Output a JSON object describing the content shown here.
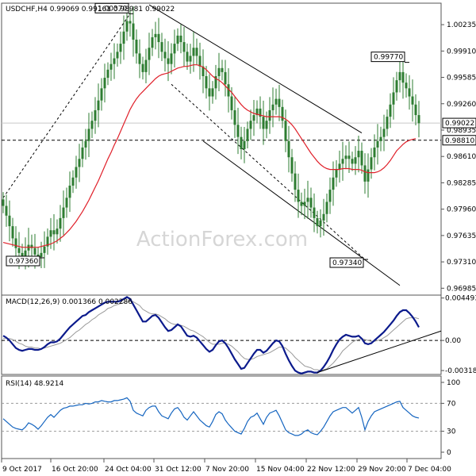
{
  "chart_data": [
    {
      "type": "candlestick",
      "title": "USDCHF,H4",
      "ohlc_header": {
        "open": "0.99069",
        "high": "0.99161",
        "low": "0.98981",
        "close": "0.99022"
      },
      "watermark": "ActionForex.com",
      "ylim": [
        0.969,
        1.005
      ],
      "y_ticks": [
        "1.00235",
        "0.99910",
        "0.99585",
        "0.99260",
        "0.98935",
        "0.98610",
        "0.98285",
        "0.97960",
        "0.97635",
        "0.97310",
        "0.96985"
      ],
      "x_ticks": [
        "9 Oct 2017",
        "16 Oct 20:00",
        "24 Oct 04:00",
        "31 Oct 12:00",
        "7 Nov 20:00",
        "15 Nov 04:00",
        "22 Nov 12:00",
        "29 Nov 20:00",
        "7 Dec 04:00"
      ],
      "current_price": "0.99022",
      "horizontal_line": {
        "label": "0.98810",
        "value": 0.9881
      },
      "annotations": [
        {
          "label": "1.00370",
          "value": 1.0037,
          "bar": 40
        },
        {
          "label": "0.99770",
          "value": 0.9977,
          "bar": 127
        },
        {
          "label": "0.97360",
          "value": 0.9736,
          "bar": 12
        },
        {
          "label": "0.97340",
          "value": 0.9734,
          "bar": 114
        }
      ],
      "closes": [
        0.98,
        0.9788,
        0.9775,
        0.976,
        0.9748,
        0.9742,
        0.9738,
        0.9745,
        0.9752,
        0.9748,
        0.974,
        0.9737,
        0.9742,
        0.975,
        0.9762,
        0.977,
        0.9765,
        0.9772,
        0.9785,
        0.9798,
        0.981,
        0.9825,
        0.9835,
        0.9848,
        0.9858,
        0.9872,
        0.988,
        0.9895,
        0.9905,
        0.9918,
        0.993,
        0.9945,
        0.9958,
        0.9968,
        0.9975,
        0.9982,
        0.999,
        1.0,
        1.0015,
        1.0028,
        1.0025,
        1.0005,
        0.9988,
        0.9975,
        0.9965,
        0.998,
        0.9995,
        1.0008,
        1.0012,
        1.0002,
        0.999,
        0.9982,
        0.9975,
        0.9988,
        1.0,
        1.001,
        1.0002,
        0.999,
        0.9978,
        0.9985,
        0.9995,
        0.9985,
        0.9972,
        0.996,
        0.9945,
        0.9935,
        0.9945,
        0.996,
        0.997,
        0.9965,
        0.995,
        0.9935,
        0.9918,
        0.99,
        0.9885,
        0.987,
        0.988,
        0.9895,
        0.9905,
        0.9912,
        0.992,
        0.991,
        0.9895,
        0.9905,
        0.9918,
        0.9925,
        0.9932,
        0.9922,
        0.9905,
        0.988,
        0.986,
        0.984,
        0.982,
        0.9805,
        0.98,
        0.9805,
        0.981,
        0.9798,
        0.9785,
        0.9775,
        0.9782,
        0.979,
        0.9805,
        0.982,
        0.9835,
        0.9845,
        0.9852,
        0.9858,
        0.9862,
        0.9858,
        0.9852,
        0.986,
        0.9868,
        0.985,
        0.983,
        0.9845,
        0.986,
        0.9872,
        0.988,
        0.9885,
        0.9895,
        0.991,
        0.9925,
        0.994,
        0.9955,
        0.9965,
        0.9952,
        0.9945,
        0.9935,
        0.9925,
        0.9912,
        0.9902
      ],
      "moving_average": [
        0.9755,
        0.9754,
        0.9753,
        0.9752,
        0.9751,
        0.975,
        0.9749,
        0.9749,
        0.9749,
        0.9749,
        0.9749,
        0.9749,
        0.975,
        0.9751,
        0.9752,
        0.9753,
        0.9755,
        0.9757,
        0.976,
        0.9763,
        0.9767,
        0.9771,
        0.9776,
        0.9781,
        0.9787,
        0.9793,
        0.98,
        0.9807,
        0.9815,
        0.9823,
        0.9831,
        0.984,
        0.9849,
        0.9858,
        0.9866,
        0.9875,
        0.9883,
        0.9892,
        0.9901,
        0.991,
        0.9919,
        0.9926,
        0.9932,
        0.9937,
        0.9941,
        0.9945,
        0.9949,
        0.9953,
        0.9957,
        0.996,
        0.9962,
        0.9963,
        0.9964,
        0.9966,
        0.9968,
        0.997,
        0.9971,
        0.9972,
        0.9972,
        0.9973,
        0.9974,
        0.9974,
        0.9973,
        0.9971,
        0.9968,
        0.9964,
        0.996,
        0.9957,
        0.9955,
        0.9952,
        0.9948,
        0.9944,
        0.994,
        0.9935,
        0.993,
        0.9925,
        0.9921,
        0.9918,
        0.9916,
        0.9914,
        0.9913,
        0.9912,
        0.9911,
        0.991,
        0.991,
        0.991,
        0.991,
        0.991,
        0.9909,
        0.9907,
        0.9904,
        0.99,
        0.9895,
        0.9889,
        0.9883,
        0.9877,
        0.9871,
        0.9865,
        0.986,
        0.9855,
        0.9851,
        0.9848,
        0.9846,
        0.9845,
        0.9845,
        0.9845,
        0.9845,
        0.9846,
        0.9846,
        0.9846,
        0.9845,
        0.9845,
        0.9845,
        0.9844,
        0.9842,
        0.9841,
        0.9841,
        0.9841,
        0.9842,
        0.9844,
        0.9847,
        0.9851,
        0.9856,
        0.9862,
        0.9868,
        0.9872,
        0.9876,
        0.9879,
        0.9881,
        0.9882,
        0.9883
      ],
      "trendlines": [
        {
          "name": "channel-upper",
          "from": [
            46,
            1.0048
          ],
          "to": [
            113,
            0.989
          ]
        },
        {
          "name": "channel-lower",
          "from": [
            63,
            0.988
          ],
          "to": [
            125,
            0.9702
          ]
        },
        {
          "name": "dashed-rise",
          "from": [
            0,
            0.981
          ],
          "to": [
            40,
            1.0037
          ],
          "dashed": true
        },
        {
          "name": "dashed-fall",
          "from": [
            53,
            0.995
          ],
          "to": [
            114,
            0.9734
          ],
          "dashed": true
        }
      ]
    },
    {
      "type": "line",
      "title": "MACD(12,26,9) 0.001366 0.002286",
      "ylim": [
        -0.0036,
        0.0048
      ],
      "y_ticks": [
        "0.004493",
        "0.00",
        "-0.003186"
      ],
      "macd": [
        0.0005,
        0.0003,
        0.0,
        -0.0004,
        -0.0008,
        -0.001,
        -0.0011,
        -0.001,
        -0.0009,
        -0.0009,
        -0.001,
        -0.001,
        -0.0009,
        -0.0007,
        -0.0004,
        -0.0002,
        -0.0002,
        -0.0001,
        0.0002,
        0.0006,
        0.001,
        0.0014,
        0.0017,
        0.002,
        0.0023,
        0.0026,
        0.0027,
        0.003,
        0.0032,
        0.0034,
        0.0036,
        0.0038,
        0.004,
        0.0041,
        0.0041,
        0.0041,
        0.0041,
        0.0042,
        0.0044,
        0.0046,
        0.0044,
        0.0038,
        0.0032,
        0.0026,
        0.002,
        0.002,
        0.0023,
        0.0026,
        0.0027,
        0.0024,
        0.0019,
        0.0014,
        0.001,
        0.0011,
        0.0014,
        0.0017,
        0.0015,
        0.001,
        0.0005,
        0.0004,
        0.0005,
        0.0003,
        -0.0001,
        -0.0005,
        -0.0009,
        -0.0012,
        -0.001,
        -0.0005,
        -0.0001,
        0.0,
        -0.0003,
        -0.0008,
        -0.0014,
        -0.002,
        -0.0025,
        -0.003,
        -0.0029,
        -0.0024,
        -0.0019,
        -0.0014,
        -0.001,
        -0.001,
        -0.0013,
        -0.0011,
        -0.0007,
        -0.0003,
        0.0,
        -0.0001,
        -0.0006,
        -0.0014,
        -0.0021,
        -0.0027,
        -0.0032,
        -0.0034,
        -0.0035,
        -0.0034,
        -0.0033,
        -0.0033,
        -0.0034,
        -0.0034,
        -0.0032,
        -0.0028,
        -0.0023,
        -0.0017,
        -0.001,
        -0.0004,
        0.0001,
        0.0004,
        0.0006,
        0.0005,
        0.0004,
        0.0004,
        0.0005,
        0.0002,
        -0.0003,
        -0.0004,
        -0.0003,
        0.0,
        0.0003,
        0.0006,
        0.0009,
        0.0013,
        0.0017,
        0.0021,
        0.0026,
        0.003,
        0.0032,
        0.0032,
        0.0029,
        0.0025,
        0.002,
        0.0014
      ],
      "signal": [
        0.0002,
        0.0002,
        0.0002,
        0.0001,
        -0.0001,
        -0.0003,
        -0.0004,
        -0.0006,
        -0.0007,
        -0.0007,
        -0.0008,
        -0.0008,
        -0.0009,
        -0.0008,
        -0.0007,
        -0.0006,
        -0.0005,
        -0.0004,
        -0.0003,
        -0.0001,
        0.0001,
        0.0003,
        0.0006,
        0.0009,
        0.0011,
        0.0014,
        0.0017,
        0.0019,
        0.0022,
        0.0024,
        0.0027,
        0.0029,
        0.0031,
        0.0034,
        0.0035,
        0.0037,
        0.0038,
        0.0039,
        0.004,
        0.0041,
        0.0042,
        0.0041,
        0.0039,
        0.0037,
        0.0033,
        0.0031,
        0.0029,
        0.0028,
        0.0028,
        0.0027,
        0.0025,
        0.0023,
        0.002,
        0.0018,
        0.0017,
        0.0017,
        0.0016,
        0.0015,
        0.0013,
        0.0011,
        0.001,
        0.0008,
        0.0006,
        0.0004,
        0.0001,
        -0.0002,
        -0.0004,
        -0.0004,
        -0.0004,
        -0.0003,
        -0.0003,
        -0.0004,
        -0.0006,
        -0.0009,
        -0.0012,
        -0.0016,
        -0.0019,
        -0.002,
        -0.002,
        -0.0019,
        -0.0017,
        -0.0016,
        -0.0015,
        -0.0014,
        -0.0013,
        -0.0011,
        -0.0009,
        -0.0007,
        -0.0007,
        -0.0008,
        -0.0011,
        -0.0014,
        -0.0018,
        -0.0021,
        -0.0024,
        -0.0027,
        -0.0028,
        -0.0029,
        -0.0031,
        -0.0031,
        -0.0032,
        -0.0031,
        -0.003,
        -0.0027,
        -0.0024,
        -0.002,
        -0.0016,
        -0.0011,
        -0.0008,
        -0.0005,
        -0.0002,
        0.0,
        0.0001,
        0.0002,
        0.0001,
        0.0,
        -0.0001,
        -0.0001,
        0.0,
        0.0001,
        0.0003,
        0.0005,
        0.0008,
        0.0011,
        0.0014,
        0.0017,
        0.002,
        0.0023,
        0.0024,
        0.0024,
        0.0024,
        0.0023
      ],
      "trendline": {
        "from": [
          99,
          -0.0034
        ],
        "to": [
          133,
          0.0013
        ]
      }
    },
    {
      "type": "line",
      "title": "RSI(14) 48.9214",
      "ylim": [
        0,
        100
      ],
      "y_ticks": [
        "100",
        "70",
        "30",
        "0"
      ],
      "levels": [
        70,
        30
      ],
      "rsi": [
        48,
        44,
        40,
        36,
        34,
        33,
        32,
        36,
        42,
        40,
        37,
        33,
        38,
        44,
        50,
        54,
        50,
        55,
        60,
        63,
        64,
        66,
        66,
        67,
        68,
        68,
        70,
        69,
        70,
        72,
        72,
        74,
        73,
        72,
        72,
        74,
        74,
        75,
        76,
        78,
        73,
        60,
        56,
        54,
        52,
        60,
        64,
        66,
        66,
        58,
        52,
        50,
        48,
        56,
        62,
        64,
        58,
        50,
        46,
        52,
        58,
        52,
        46,
        42,
        38,
        36,
        44,
        54,
        58,
        55,
        46,
        40,
        35,
        30,
        28,
        26,
        34,
        44,
        50,
        52,
        56,
        48,
        40,
        50,
        56,
        58,
        60,
        52,
        42,
        32,
        28,
        26,
        24,
        24,
        26,
        30,
        32,
        28,
        26,
        25,
        30,
        36,
        44,
        52,
        58,
        60,
        62,
        64,
        64,
        60,
        56,
        60,
        64,
        50,
        32,
        44,
        52,
        58,
        60,
        62,
        64,
        66,
        68,
        70,
        72,
        73,
        64,
        60,
        56,
        52,
        50,
        48.9214
      ],
      "current": "48.9214"
    }
  ]
}
